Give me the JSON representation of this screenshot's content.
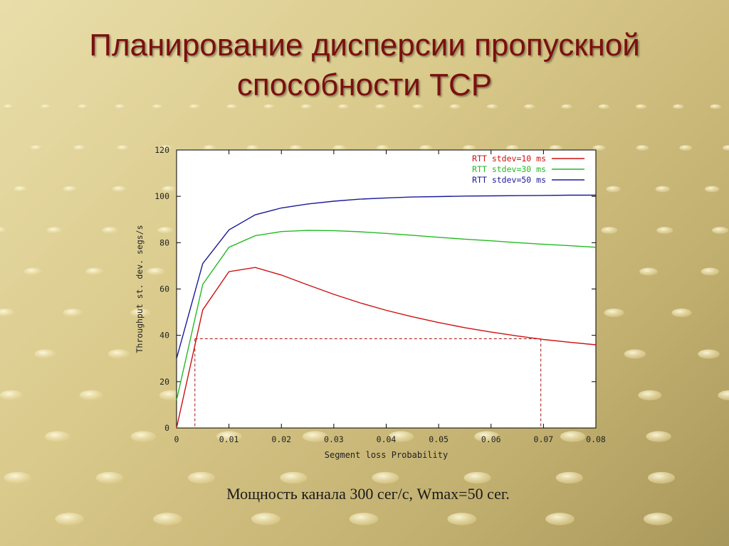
{
  "slide": {
    "title_line1": "Планирование дисперсии пропускной",
    "title_line2": "способности TCP",
    "caption": "Мощность канала 300 сег/с, Wmax=50 сег.",
    "title_color": "#7a1010"
  },
  "chart_data": {
    "type": "line",
    "title": "",
    "xlabel": "Segment loss Probability",
    "ylabel": "Throughput st. dev. segs/s",
    "xlim": [
      0,
      0.08
    ],
    "ylim": [
      0,
      120
    ],
    "xticks": [
      "0",
      "0.01",
      "0.02",
      "0.03",
      "0.04",
      "0.05",
      "0.06",
      "0.07",
      "0.08"
    ],
    "yticks": [
      "0",
      "20",
      "40",
      "60",
      "80",
      "100",
      "120"
    ],
    "legend_position": "top-right",
    "grid": false,
    "series": [
      {
        "name": "RTT stdev=10 ms",
        "color": "#cc1111",
        "x": [
          0,
          0.005,
          0.01,
          0.015,
          0.02,
          0.025,
          0.03,
          0.035,
          0.04,
          0.045,
          0.05,
          0.055,
          0.06,
          0.065,
          0.07,
          0.075,
          0.08
        ],
        "y": [
          0,
          51,
          67.5,
          69.3,
          66,
          61.8,
          57.7,
          54,
          50.8,
          48,
          45.5,
          43.3,
          41.4,
          39.7,
          38.2,
          37,
          35.9
        ]
      },
      {
        "name": "RTT stdev=30 ms",
        "color": "#22bb22",
        "x": [
          0,
          0.005,
          0.01,
          0.015,
          0.02,
          0.025,
          0.03,
          0.035,
          0.04,
          0.045,
          0.05,
          0.055,
          0.06,
          0.065,
          0.07,
          0.075,
          0.08
        ],
        "y": [
          12,
          62,
          78,
          83,
          84.8,
          85.3,
          85.2,
          84.7,
          84,
          83.2,
          82.3,
          81.5,
          80.8,
          80,
          79.3,
          78.7,
          78
        ]
      },
      {
        "name": "RTT stdev=50 ms",
        "color": "#1a1a99",
        "x": [
          0,
          0.005,
          0.01,
          0.015,
          0.02,
          0.025,
          0.03,
          0.035,
          0.04,
          0.045,
          0.05,
          0.055,
          0.06,
          0.065,
          0.07,
          0.075,
          0.08
        ],
        "y": [
          30,
          71,
          85.5,
          92,
          95,
          96.7,
          97.9,
          98.8,
          99.3,
          99.7,
          99.9,
          100.1,
          100.2,
          100.3,
          100.4,
          100.5,
          100.5
        ]
      }
    ],
    "reference_lines": {
      "color": "#aa1111",
      "y_level": 38.5,
      "x_points": [
        0.0035,
        0.0695
      ]
    }
  }
}
